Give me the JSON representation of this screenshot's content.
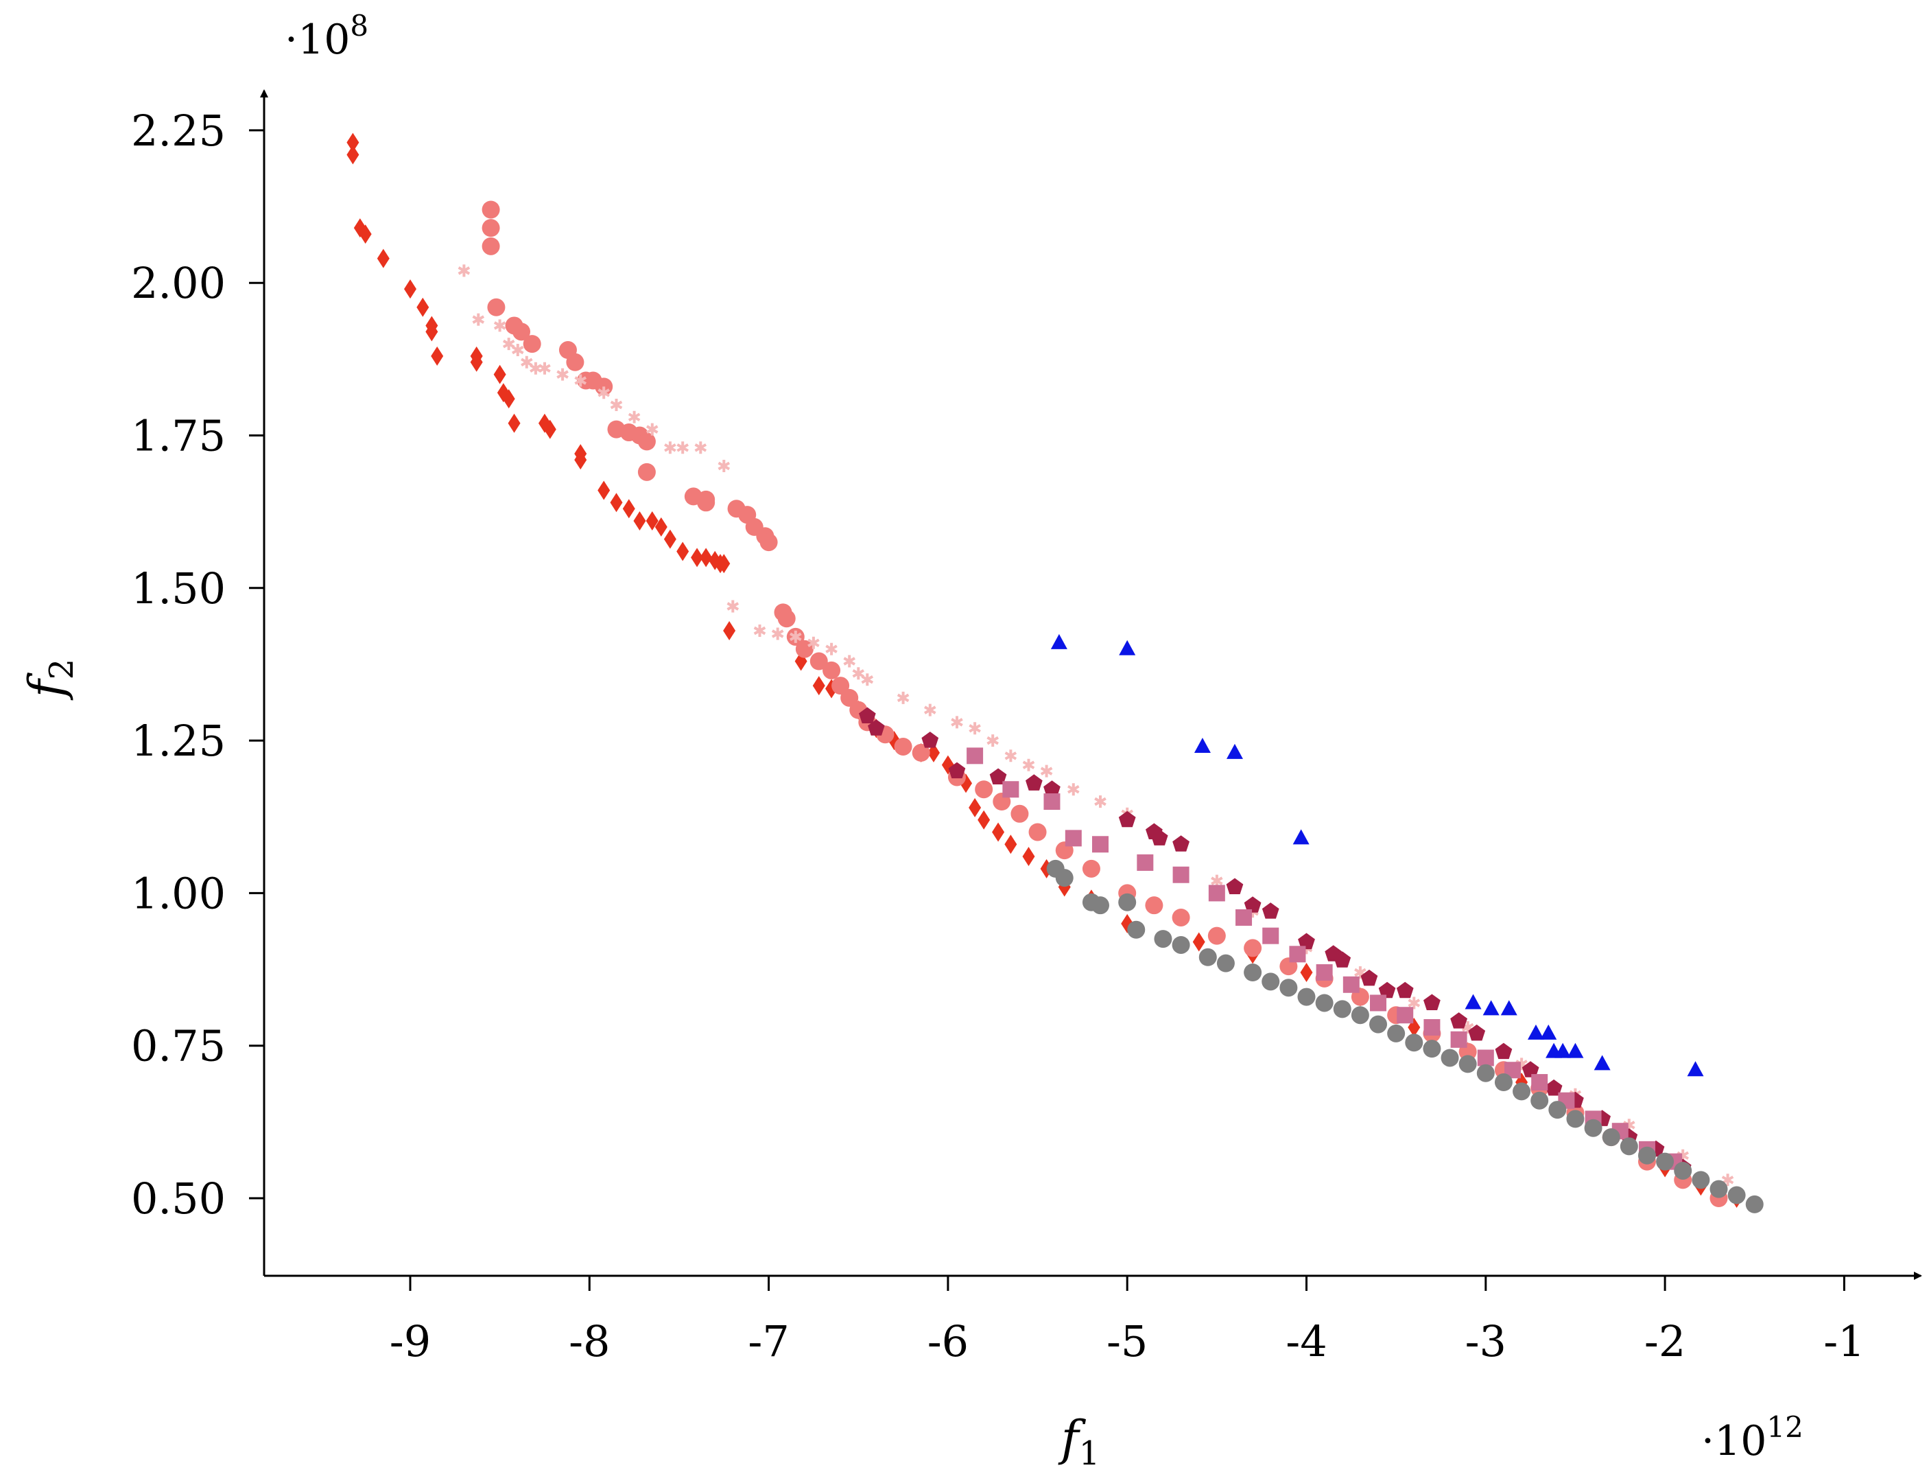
{
  "chart_data": {
    "type": "scatter",
    "title": "",
    "xlabel": "f",
    "xlabel_sub": "1",
    "ylabel": "f",
    "ylabel_sub": "2",
    "x_multiplier": {
      "base": "·10",
      "exp": "12"
    },
    "y_multiplier": {
      "base": "·10",
      "exp": "8"
    },
    "xlim": [
      -9.8,
      -0.55
    ],
    "ylim": [
      0.375,
      2.38
    ],
    "xticks": [
      -9,
      -8,
      -7,
      -6,
      -5,
      -4,
      -3,
      -2,
      -1
    ],
    "xtick_labels": [
      "-9",
      "-8",
      "-7",
      "-6",
      "-5",
      "-4",
      "-3",
      "-2",
      "-1"
    ],
    "yticks": [
      0.5,
      0.75,
      1.0,
      1.25,
      1.5,
      1.75,
      2.0,
      2.25
    ],
    "ytick_labels": [
      "0.50",
      "0.75",
      "1.00",
      "1.25",
      "1.50",
      "1.75",
      "2.00",
      "2.25"
    ],
    "grid": false,
    "legend": "none",
    "series": [
      {
        "marker": "diamond",
        "color": "#e8321e",
        "points": [
          [
            -9.32,
            2.23
          ],
          [
            -9.32,
            2.21
          ],
          [
            -9.28,
            2.09
          ],
          [
            -9.25,
            2.08
          ],
          [
            -9.15,
            2.04
          ],
          [
            -9.0,
            1.99
          ],
          [
            -8.93,
            1.96
          ],
          [
            -8.88,
            1.93
          ],
          [
            -8.88,
            1.92
          ],
          [
            -8.85,
            1.88
          ],
          [
            -8.63,
            1.88
          ],
          [
            -8.63,
            1.87
          ],
          [
            -8.5,
            1.85
          ],
          [
            -8.48,
            1.82
          ],
          [
            -8.45,
            1.81
          ],
          [
            -8.42,
            1.77
          ],
          [
            -8.25,
            1.77
          ],
          [
            -8.22,
            1.76
          ],
          [
            -8.05,
            1.72
          ],
          [
            -8.05,
            1.71
          ],
          [
            -7.92,
            1.66
          ],
          [
            -7.85,
            1.64
          ],
          [
            -7.78,
            1.63
          ],
          [
            -7.72,
            1.61
          ],
          [
            -7.65,
            1.61
          ],
          [
            -7.6,
            1.6
          ],
          [
            -7.55,
            1.58
          ],
          [
            -7.48,
            1.56
          ],
          [
            -7.4,
            1.55
          ],
          [
            -7.35,
            1.55
          ],
          [
            -7.3,
            1.545
          ],
          [
            -7.27,
            1.54
          ],
          [
            -7.25,
            1.54
          ],
          [
            -7.22,
            1.43
          ],
          [
            -6.82,
            1.38
          ],
          [
            -6.72,
            1.34
          ],
          [
            -6.65,
            1.335
          ],
          [
            -6.5,
            1.3
          ],
          [
            -6.4,
            1.27
          ],
          [
            -6.3,
            1.25
          ],
          [
            -6.15,
            1.23
          ],
          [
            -6.08,
            1.23
          ],
          [
            -6.0,
            1.21
          ],
          [
            -5.9,
            1.18
          ],
          [
            -5.85,
            1.14
          ],
          [
            -5.8,
            1.12
          ],
          [
            -5.72,
            1.1
          ],
          [
            -5.65,
            1.08
          ],
          [
            -5.55,
            1.06
          ],
          [
            -5.45,
            1.04
          ],
          [
            -5.35,
            1.01
          ],
          [
            -5.2,
            0.99
          ],
          [
            -5.0,
            0.95
          ],
          [
            -4.6,
            0.92
          ],
          [
            -4.3,
            0.9
          ],
          [
            -4.0,
            0.87
          ],
          [
            -3.7,
            0.83
          ],
          [
            -3.4,
            0.78
          ],
          [
            -3.1,
            0.74
          ],
          [
            -2.8,
            0.69
          ],
          [
            -2.5,
            0.64
          ],
          [
            -2.2,
            0.59
          ],
          [
            -2.0,
            0.55
          ],
          [
            -1.8,
            0.52
          ],
          [
            -1.6,
            0.5
          ]
        ]
      },
      {
        "marker": "circle",
        "color": "#f07a78",
        "points": [
          [
            -8.55,
            2.12
          ],
          [
            -8.55,
            2.09
          ],
          [
            -8.55,
            2.06
          ],
          [
            -8.52,
            1.96
          ],
          [
            -8.42,
            1.93
          ],
          [
            -8.38,
            1.92
          ],
          [
            -8.32,
            1.9
          ],
          [
            -8.12,
            1.89
          ],
          [
            -8.08,
            1.87
          ],
          [
            -8.02,
            1.84
          ],
          [
            -7.98,
            1.84
          ],
          [
            -7.92,
            1.83
          ],
          [
            -7.85,
            1.76
          ],
          [
            -7.78,
            1.755
          ],
          [
            -7.72,
            1.75
          ],
          [
            -7.68,
            1.74
          ],
          [
            -7.68,
            1.69
          ],
          [
            -7.42,
            1.65
          ],
          [
            -7.35,
            1.645
          ],
          [
            -7.35,
            1.64
          ],
          [
            -7.18,
            1.63
          ],
          [
            -7.12,
            1.62
          ],
          [
            -7.08,
            1.6
          ],
          [
            -7.02,
            1.585
          ],
          [
            -7.0,
            1.575
          ],
          [
            -6.92,
            1.46
          ],
          [
            -6.9,
            1.45
          ],
          [
            -6.85,
            1.42
          ],
          [
            -6.8,
            1.4
          ],
          [
            -6.72,
            1.38
          ],
          [
            -6.65,
            1.365
          ],
          [
            -6.6,
            1.34
          ],
          [
            -6.55,
            1.32
          ],
          [
            -6.5,
            1.3
          ],
          [
            -6.45,
            1.28
          ],
          [
            -6.35,
            1.26
          ],
          [
            -6.25,
            1.24
          ],
          [
            -6.15,
            1.23
          ],
          [
            -5.95,
            1.19
          ],
          [
            -5.8,
            1.17
          ],
          [
            -5.7,
            1.15
          ],
          [
            -5.6,
            1.13
          ],
          [
            -5.5,
            1.1
          ],
          [
            -5.35,
            1.07
          ],
          [
            -5.2,
            1.04
          ],
          [
            -5.0,
            1.0
          ],
          [
            -4.85,
            0.98
          ],
          [
            -4.7,
            0.96
          ],
          [
            -4.5,
            0.93
          ],
          [
            -4.3,
            0.91
          ],
          [
            -4.1,
            0.88
          ],
          [
            -3.9,
            0.86
          ],
          [
            -3.7,
            0.83
          ],
          [
            -3.5,
            0.8
          ],
          [
            -3.3,
            0.77
          ],
          [
            -3.1,
            0.74
          ],
          [
            -2.9,
            0.71
          ],
          [
            -2.7,
            0.68
          ],
          [
            -2.5,
            0.64
          ],
          [
            -2.3,
            0.6
          ],
          [
            -2.1,
            0.56
          ],
          [
            -1.9,
            0.53
          ],
          [
            -1.7,
            0.5
          ]
        ]
      },
      {
        "marker": "asterisk",
        "color": "#f5b8b8",
        "points": [
          [
            -8.7,
            2.02
          ],
          [
            -8.62,
            1.94
          ],
          [
            -8.5,
            1.93
          ],
          [
            -8.45,
            1.9
          ],
          [
            -8.4,
            1.89
          ],
          [
            -8.35,
            1.87
          ],
          [
            -8.3,
            1.86
          ],
          [
            -8.25,
            1.86
          ],
          [
            -8.15,
            1.85
          ],
          [
            -8.05,
            1.84
          ],
          [
            -7.92,
            1.82
          ],
          [
            -7.85,
            1.8
          ],
          [
            -7.75,
            1.78
          ],
          [
            -7.65,
            1.76
          ],
          [
            -7.55,
            1.73
          ],
          [
            -7.48,
            1.73
          ],
          [
            -7.38,
            1.73
          ],
          [
            -7.25,
            1.7
          ],
          [
            -7.2,
            1.47
          ],
          [
            -7.05,
            1.43
          ],
          [
            -6.95,
            1.425
          ],
          [
            -6.85,
            1.42
          ],
          [
            -6.75,
            1.41
          ],
          [
            -6.65,
            1.4
          ],
          [
            -6.55,
            1.38
          ],
          [
            -6.5,
            1.36
          ],
          [
            -6.45,
            1.35
          ],
          [
            -6.25,
            1.32
          ],
          [
            -6.1,
            1.3
          ],
          [
            -5.95,
            1.28
          ],
          [
            -5.85,
            1.27
          ],
          [
            -5.75,
            1.25
          ],
          [
            -5.65,
            1.225
          ],
          [
            -5.55,
            1.21
          ],
          [
            -5.45,
            1.2
          ],
          [
            -5.3,
            1.17
          ],
          [
            -5.15,
            1.15
          ],
          [
            -5.0,
            1.13
          ],
          [
            -4.85,
            1.1
          ],
          [
            -4.5,
            1.02
          ],
          [
            -4.3,
            0.97
          ],
          [
            -4.0,
            0.91
          ],
          [
            -3.7,
            0.87
          ],
          [
            -3.4,
            0.82
          ],
          [
            -3.1,
            0.78
          ],
          [
            -2.8,
            0.72
          ],
          [
            -2.5,
            0.67
          ],
          [
            -2.2,
            0.62
          ],
          [
            -1.9,
            0.57
          ],
          [
            -1.65,
            0.53
          ]
        ]
      },
      {
        "marker": "pentagon",
        "color": "#a41e45",
        "points": [
          [
            -6.45,
            1.29
          ],
          [
            -6.4,
            1.27
          ],
          [
            -6.1,
            1.25
          ],
          [
            -5.95,
            1.2
          ],
          [
            -5.72,
            1.19
          ],
          [
            -5.52,
            1.18
          ],
          [
            -5.42,
            1.17
          ],
          [
            -5.0,
            1.12
          ],
          [
            -4.85,
            1.1
          ],
          [
            -4.82,
            1.09
          ],
          [
            -4.7,
            1.08
          ],
          [
            -4.4,
            1.01
          ],
          [
            -4.3,
            0.98
          ],
          [
            -4.2,
            0.97
          ],
          [
            -4.0,
            0.92
          ],
          [
            -3.85,
            0.9
          ],
          [
            -3.8,
            0.89
          ],
          [
            -3.65,
            0.86
          ],
          [
            -3.55,
            0.84
          ],
          [
            -3.45,
            0.84
          ],
          [
            -3.3,
            0.82
          ],
          [
            -3.15,
            0.79
          ],
          [
            -3.05,
            0.77
          ],
          [
            -2.9,
            0.74
          ],
          [
            -2.75,
            0.71
          ],
          [
            -2.62,
            0.68
          ],
          [
            -2.5,
            0.66
          ],
          [
            -2.35,
            0.63
          ],
          [
            -2.2,
            0.6
          ],
          [
            -2.05,
            0.58
          ],
          [
            -1.9,
            0.55
          ]
        ]
      },
      {
        "marker": "square",
        "color": "#cc6e94",
        "points": [
          [
            -5.85,
            1.225
          ],
          [
            -5.65,
            1.17
          ],
          [
            -5.42,
            1.15
          ],
          [
            -5.3,
            1.09
          ],
          [
            -5.15,
            1.08
          ],
          [
            -4.9,
            1.05
          ],
          [
            -4.7,
            1.03
          ],
          [
            -4.5,
            1.0
          ],
          [
            -4.35,
            0.96
          ],
          [
            -4.2,
            0.93
          ],
          [
            -4.05,
            0.9
          ],
          [
            -3.9,
            0.87
          ],
          [
            -3.75,
            0.85
          ],
          [
            -3.6,
            0.82
          ],
          [
            -3.45,
            0.8
          ],
          [
            -3.3,
            0.78
          ],
          [
            -3.15,
            0.76
          ],
          [
            -3.0,
            0.73
          ],
          [
            -2.85,
            0.71
          ],
          [
            -2.7,
            0.69
          ],
          [
            -2.55,
            0.66
          ],
          [
            -2.4,
            0.63
          ],
          [
            -2.25,
            0.61
          ],
          [
            -2.1,
            0.58
          ],
          [
            -1.95,
            0.56
          ]
        ]
      },
      {
        "marker": "circle",
        "color": "#808080",
        "points": [
          [
            -5.4,
            1.04
          ],
          [
            -5.35,
            1.025
          ],
          [
            -5.2,
            0.985
          ],
          [
            -5.15,
            0.98
          ],
          [
            -5.0,
            0.985
          ],
          [
            -4.95,
            0.94
          ],
          [
            -4.8,
            0.925
          ],
          [
            -4.7,
            0.915
          ],
          [
            -4.55,
            0.895
          ],
          [
            -4.45,
            0.885
          ],
          [
            -4.3,
            0.87
          ],
          [
            -4.2,
            0.855
          ],
          [
            -4.1,
            0.845
          ],
          [
            -4.0,
            0.83
          ],
          [
            -3.9,
            0.82
          ],
          [
            -3.8,
            0.81
          ],
          [
            -3.7,
            0.8
          ],
          [
            -3.6,
            0.785
          ],
          [
            -3.5,
            0.77
          ],
          [
            -3.4,
            0.755
          ],
          [
            -3.3,
            0.745
          ],
          [
            -3.2,
            0.73
          ],
          [
            -3.1,
            0.72
          ],
          [
            -3.0,
            0.705
          ],
          [
            -2.9,
            0.69
          ],
          [
            -2.8,
            0.675
          ],
          [
            -2.7,
            0.66
          ],
          [
            -2.6,
            0.645
          ],
          [
            -2.5,
            0.63
          ],
          [
            -2.4,
            0.615
          ],
          [
            -2.3,
            0.6
          ],
          [
            -2.2,
            0.585
          ],
          [
            -2.1,
            0.57
          ],
          [
            -2.0,
            0.56
          ],
          [
            -1.9,
            0.545
          ],
          [
            -1.8,
            0.53
          ],
          [
            -1.7,
            0.515
          ],
          [
            -1.6,
            0.505
          ],
          [
            -1.5,
            0.49
          ]
        ]
      },
      {
        "marker": "triangle",
        "color": "#0a14e6",
        "points": [
          [
            -5.38,
            1.41
          ],
          [
            -5.0,
            1.4
          ],
          [
            -4.58,
            1.24
          ],
          [
            -4.4,
            1.23
          ],
          [
            -4.03,
            1.09
          ],
          [
            -3.07,
            0.82
          ],
          [
            -2.97,
            0.81
          ],
          [
            -2.87,
            0.81
          ],
          [
            -2.72,
            0.77
          ],
          [
            -2.65,
            0.77
          ],
          [
            -2.62,
            0.74
          ],
          [
            -2.57,
            0.74
          ],
          [
            -2.5,
            0.74
          ],
          [
            -2.35,
            0.72
          ],
          [
            -1.83,
            0.71
          ]
        ]
      }
    ]
  }
}
